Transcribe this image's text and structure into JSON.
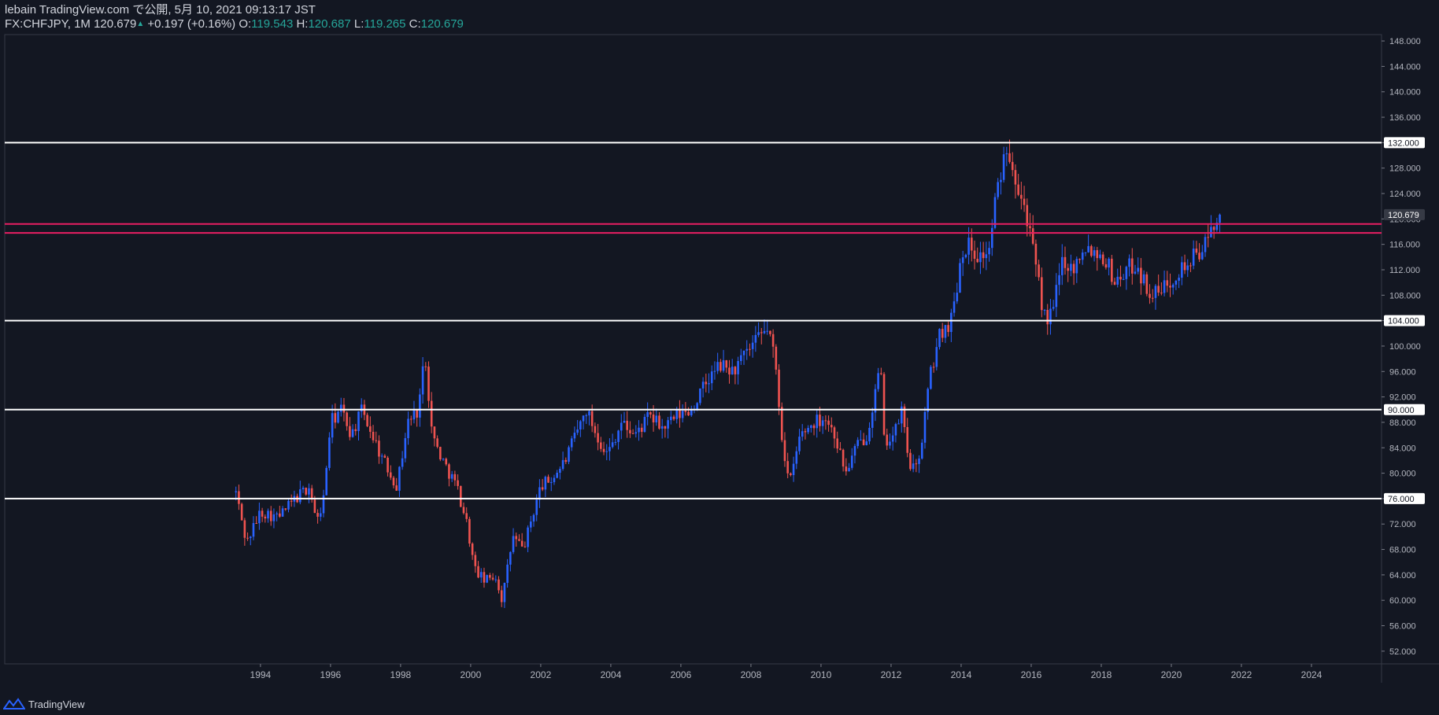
{
  "header": {
    "line1": "lebain TradingView.com で公開, 5月 10, 2021 09:13:17 JST",
    "symbol": "FX:CHFJPY, 1M",
    "last": "120.679",
    "change": "+0.197 (+0.16%)",
    "o_label": "O:",
    "o_value": "119.543",
    "h_label": "H:",
    "h_value": "120.687",
    "l_label": "L:",
    "l_value": "119.265",
    "c_label": "C:",
    "c_value": "120.679"
  },
  "footer": {
    "brand": "TradingView"
  },
  "colors": {
    "background": "#131722",
    "up": "#2962ff",
    "down": "#ef5350",
    "level": "#ffffff",
    "zone": "#e91e63"
  },
  "chart_data": {
    "type": "candlestick",
    "symbol": "FX:CHFJPY",
    "interval": "1M",
    "ylim": [
      50,
      149
    ],
    "y_ticks": [
      52,
      56,
      60,
      64,
      68,
      72,
      76,
      80,
      84,
      88,
      92,
      96,
      100,
      104,
      108,
      112,
      116,
      120,
      124,
      128,
      132,
      136,
      140,
      144,
      148
    ],
    "y_tick_labels": [
      "52.000",
      "56.000",
      "60.000",
      "64.000",
      "68.000",
      "72.000",
      "76.000",
      "80.000",
      "84.000",
      "88.000",
      "92.000",
      "96.000",
      "100.000",
      "104.000",
      "108.000",
      "112.000",
      "116.000",
      "120.000",
      "124.000",
      "128.000",
      "132.000",
      "136.000",
      "140.000",
      "144.000",
      "148.000"
    ],
    "x_ticks": [
      "1994",
      "1996",
      "1998",
      "2000",
      "2002",
      "2004",
      "2006",
      "2008",
      "2010",
      "2012",
      "2014",
      "2016",
      "2018",
      "2020",
      "2022",
      "2024"
    ],
    "xlim": [
      1986.7,
      2026.0
    ],
    "horizontal_levels": [
      {
        "value": 132.0,
        "label": "132.000"
      },
      {
        "value": 104.0,
        "label": "104.000"
      },
      {
        "value": 90.0,
        "label": "90.000"
      },
      {
        "value": 76.0,
        "label": "76.000"
      }
    ],
    "resistance_zone": [
      117.8,
      119.2
    ],
    "last_price": {
      "value": 120.679,
      "label": "120.679"
    },
    "close_path": [
      [
        1993.3,
        77
      ],
      [
        1993.6,
        69
      ],
      [
        1994.0,
        74
      ],
      [
        1994.5,
        73
      ],
      [
        1995.0,
        76
      ],
      [
        1995.4,
        78
      ],
      [
        1995.6,
        72
      ],
      [
        1995.8,
        76
      ],
      [
        1996.0,
        88
      ],
      [
        1996.3,
        90
      ],
      [
        1996.6,
        86
      ],
      [
        1996.9,
        90
      ],
      [
        1997.2,
        86
      ],
      [
        1997.5,
        82
      ],
      [
        1997.9,
        78
      ],
      [
        1998.2,
        88
      ],
      [
        1998.5,
        90
      ],
      [
        1998.7,
        99
      ],
      [
        1998.9,
        86
      ],
      [
        1999.2,
        82
      ],
      [
        1999.6,
        78
      ],
      [
        1999.9,
        72
      ],
      [
        2000.1,
        65
      ],
      [
        2000.4,
        63
      ],
      [
        2000.7,
        64
      ],
      [
        2000.9,
        60
      ],
      [
        2001.2,
        70
      ],
      [
        2001.5,
        68
      ],
      [
        2001.8,
        74
      ],
      [
        2002.0,
        78
      ],
      [
        2002.3,
        79
      ],
      [
        2002.7,
        82
      ],
      [
        2003.0,
        86
      ],
      [
        2003.3,
        90
      ],
      [
        2003.6,
        86
      ],
      [
        2003.9,
        83
      ],
      [
        2004.3,
        88
      ],
      [
        2004.7,
        86
      ],
      [
        2005.1,
        89
      ],
      [
        2005.5,
        87
      ],
      [
        2005.9,
        89
      ],
      [
        2006.3,
        90
      ],
      [
        2006.7,
        94
      ],
      [
        2007.1,
        97
      ],
      [
        2007.5,
        96
      ],
      [
        2007.9,
        99
      ],
      [
        2008.2,
        101
      ],
      [
        2008.5,
        103
      ],
      [
        2008.7,
        97
      ],
      [
        2008.9,
        85
      ],
      [
        2009.1,
        78
      ],
      [
        2009.4,
        86
      ],
      [
        2009.8,
        88
      ],
      [
        2010.1,
        89
      ],
      [
        2010.4,
        86
      ],
      [
        2010.7,
        80
      ],
      [
        2011.0,
        84
      ],
      [
        2011.3,
        86
      ],
      [
        2011.6,
        94
      ],
      [
        2011.7,
        97
      ],
      [
        2011.8,
        85
      ],
      [
        2012.1,
        86
      ],
      [
        2012.3,
        90
      ],
      [
        2012.5,
        82
      ],
      [
        2012.7,
        80
      ],
      [
        2012.9,
        86
      ],
      [
        2013.1,
        95
      ],
      [
        2013.4,
        102
      ],
      [
        2013.7,
        104
      ],
      [
        2013.9,
        110
      ],
      [
        2014.0,
        115
      ],
      [
        2014.2,
        116
      ],
      [
        2014.5,
        114
      ],
      [
        2014.8,
        115
      ],
      [
        2014.95,
        122
      ],
      [
        2015.1,
        126
      ],
      [
        2015.3,
        132
      ],
      [
        2015.5,
        128
      ],
      [
        2015.7,
        124
      ],
      [
        2015.9,
        120
      ],
      [
        2016.1,
        113
      ],
      [
        2016.4,
        104
      ],
      [
        2016.6,
        105
      ],
      [
        2016.9,
        114
      ],
      [
        2017.2,
        112
      ],
      [
        2017.5,
        116
      ],
      [
        2017.8,
        115
      ],
      [
        2018.1,
        114
      ],
      [
        2018.4,
        110
      ],
      [
        2018.7,
        112
      ],
      [
        2019.0,
        113
      ],
      [
        2019.3,
        109
      ],
      [
        2019.6,
        108
      ],
      [
        2019.9,
        110
      ],
      [
        2020.2,
        112
      ],
      [
        2020.5,
        113
      ],
      [
        2020.8,
        115
      ],
      [
        2021.0,
        116
      ],
      [
        2021.3,
        120.7
      ]
    ],
    "candle_count": 338,
    "volatility": 0.026,
    "wick_factor": 0.018
  }
}
